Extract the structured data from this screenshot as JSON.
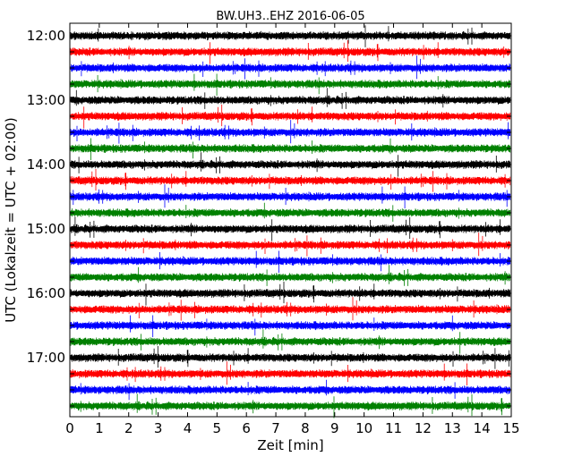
{
  "chart_data": {
    "type": "line",
    "title": "BW.UH3..EHZ 2016-06-05",
    "xlabel": "Zeit  [min]",
    "ylabel": "UTC (Lokalzeit = UTC + 02:00)",
    "xlim": [
      0,
      15
    ],
    "x_ticks": [
      0,
      1,
      2,
      3,
      4,
      5,
      6,
      7,
      8,
      9,
      10,
      11,
      12,
      13,
      14,
      15
    ],
    "y_tick_labels": [
      "12:00",
      "13:00",
      "14:00",
      "15:00",
      "16:00",
      "17:00"
    ],
    "grid": false,
    "trace_interval_min": 15,
    "trace_color_cycle": [
      "#000000",
      "#ff0000",
      "#0000ff",
      "#008000"
    ],
    "traces": [
      {
        "start": "12:00",
        "color": "#000000"
      },
      {
        "start": "12:15",
        "color": "#ff0000"
      },
      {
        "start": "12:30",
        "color": "#0000ff"
      },
      {
        "start": "12:45",
        "color": "#008000"
      },
      {
        "start": "13:00",
        "color": "#000000"
      },
      {
        "start": "13:15",
        "color": "#ff0000"
      },
      {
        "start": "13:30",
        "color": "#0000ff"
      },
      {
        "start": "13:45",
        "color": "#008000"
      },
      {
        "start": "14:00",
        "color": "#000000"
      },
      {
        "start": "14:15",
        "color": "#ff0000"
      },
      {
        "start": "14:30",
        "color": "#0000ff"
      },
      {
        "start": "14:45",
        "color": "#008000"
      },
      {
        "start": "15:00",
        "color": "#000000"
      },
      {
        "start": "15:15",
        "color": "#ff0000"
      },
      {
        "start": "15:30",
        "color": "#0000ff"
      },
      {
        "start": "15:45",
        "color": "#008000"
      },
      {
        "start": "16:00",
        "color": "#000000"
      },
      {
        "start": "16:15",
        "color": "#ff0000"
      },
      {
        "start": "16:30",
        "color": "#0000ff"
      },
      {
        "start": "16:45",
        "color": "#008000"
      },
      {
        "start": "17:00",
        "color": "#000000"
      },
      {
        "start": "17:15",
        "color": "#ff0000"
      },
      {
        "start": "17:30",
        "color": "#0000ff"
      },
      {
        "start": "17:45",
        "color": "#008000"
      }
    ]
  }
}
